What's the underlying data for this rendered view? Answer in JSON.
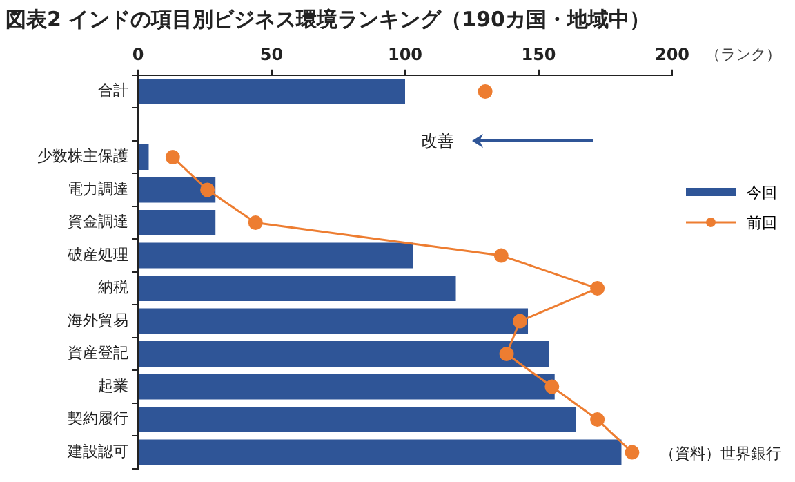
{
  "chart_data": {
    "type": "bar",
    "orientation": "horizontal",
    "title": "図表2 インドの項目別ビジネス環境ランキング（190カ国・地域中）",
    "xlabel": "（ランク）",
    "categories": [
      "合計",
      null,
      "少数株主保護",
      "電力調達",
      "資金調達",
      "破産処理",
      "納税",
      "海外貿易",
      "資産登記",
      "起業",
      "契約履行",
      "建設認可"
    ],
    "series": [
      {
        "name": "今回",
        "color": "#2f5597",
        "values": [
          100,
          null,
          4,
          29,
          29,
          103,
          119,
          146,
          154,
          156,
          164,
          181
        ]
      },
      {
        "name": "前回",
        "type": "line",
        "color": "#ed7d31",
        "marker": "circle",
        "values": [
          130,
          null,
          13,
          26,
          44,
          136,
          172,
          143,
          138,
          155,
          172,
          185
        ]
      }
    ],
    "xlim": [
      0,
      200
    ],
    "xticks": [
      0,
      50,
      100,
      150,
      200
    ],
    "grid": false,
    "legend": "right",
    "annotations": [
      "改善",
      "（資料）世界銀行"
    ]
  }
}
